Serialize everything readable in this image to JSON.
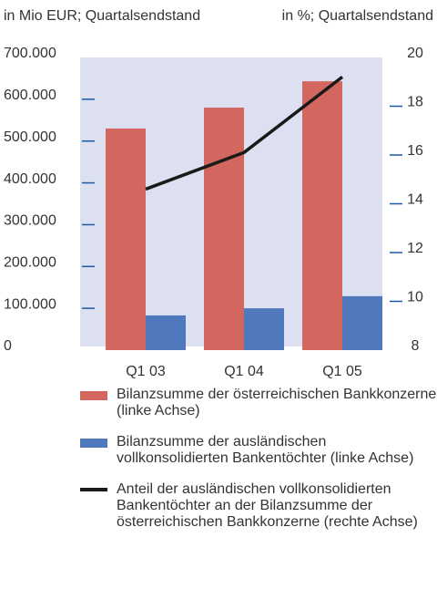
{
  "chart_data": {
    "type": "bar",
    "y_label": "in Mio EUR; Quartalsendstand",
    "y2_label": "in %; Quartalsendstand",
    "categories": [
      "Q1 03",
      "Q1 04",
      "Q1 05"
    ],
    "series": [
      {
        "name": "Bilanzsumme der österreichischen Bankkonzerne (linke Achse)",
        "color": "#d3675f",
        "values": [
          530000,
          580000,
          643000
        ]
      },
      {
        "name": "Bilanzsumme der ausländischen vollkonsolidierten Bankentöchter (linke Achse)",
        "color": "#4f78bd",
        "values": [
          83000,
          100000,
          129000
        ]
      },
      {
        "name": "Anteil der ausländischen vollkonsolidierten Bankentöchter an der Bilanzsumme der österreichischen Bankkonzerne (rechte Achse)",
        "color": "#1a1a1a",
        "type": "line",
        "axis": "y2",
        "values": [
          14.6,
          16.1,
          19.2
        ]
      }
    ],
    "ylim": [
      0,
      700000
    ],
    "yticks": [
      0,
      {
        "value": 100000,
        "label": "100.000"
      },
      {
        "value": 200000,
        "label": "200.000"
      },
      {
        "value": 300000,
        "label": "300.000"
      },
      {
        "value": 400000,
        "label": "400.000"
      },
      {
        "value": 500000,
        "label": "500.000"
      },
      {
        "value": 600000,
        "label": "600.000"
      },
      {
        "value": 700000,
        "label": "700.000"
      }
    ],
    "y2lim": [
      8,
      20
    ],
    "y2ticks": [
      8,
      10,
      12,
      14,
      16,
      18,
      20
    ],
    "background": "#dde0f0"
  }
}
